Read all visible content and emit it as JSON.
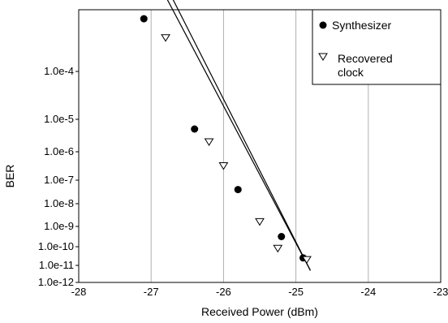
{
  "chart_data": {
    "type": "scatter",
    "xlabel": "Received Power (dBm)",
    "ylabel": "BER",
    "xlim": [
      -28,
      -23
    ],
    "x_ticks": [
      -28,
      -27,
      -26,
      -25,
      -24,
      -23
    ],
    "x_tick_labels": [
      "-28",
      "-27",
      "-26",
      "-25",
      "-24",
      "-23"
    ],
    "y_tick_labels": [
      "1.0e-4",
      "1.0e-5",
      "1.0e-6",
      "1.0e-7",
      "1.0e-8",
      "1.0e-9",
      "1.0e-10",
      "1.0e-11",
      "1.0e-12"
    ],
    "grid": "vertical lines at x ticks",
    "legend_position": "top-right",
    "series": [
      {
        "name": "Synthesizer",
        "marker": "filled-circle",
        "color": "#000000",
        "x": [
          -27.1,
          -26.4,
          -25.8,
          -25.2,
          -24.9
        ],
        "y_tick_position": [
          -2.9,
          -5.3,
          -7.4,
          -9.5,
          -10.6
        ],
        "fit_line_x": [
          -27.3,
          -24.8
        ],
        "fit_line_y_tick_position": [
          -1.0,
          -11.3
        ]
      },
      {
        "name": "Recovered clock",
        "marker": "open-triangle-down",
        "color": "#000000",
        "x": [
          -26.8,
          -26.2,
          -26.0,
          -25.5,
          -25.25,
          -24.85
        ],
        "y_tick_position": [
          -3.3,
          -5.7,
          -6.5,
          -8.8,
          -10.1,
          -10.7
        ],
        "fit_line_x": [
          -27.2,
          -24.8
        ],
        "fit_line_y_tick_position": [
          -1.0,
          -11.3
        ]
      }
    ]
  }
}
